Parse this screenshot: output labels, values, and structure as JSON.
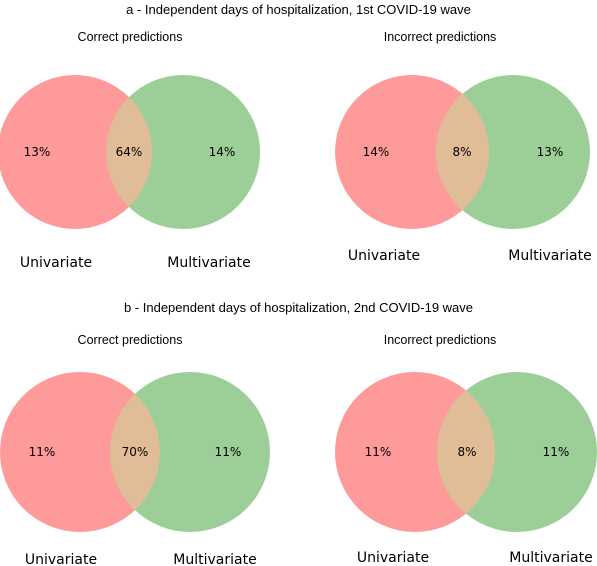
{
  "sections": [
    {
      "title": "a - Independent days of hospitalization, 1st COVID-19 wave",
      "panels": [
        {
          "title": "Correct predictions",
          "left_only": "13%",
          "overlap": "64%",
          "right_only": "14%",
          "left_label": "Univariate",
          "right_label": "Multivariate"
        },
        {
          "title": "Incorrect predictions",
          "left_only": "14%",
          "overlap": "8%",
          "right_only": "13%",
          "left_label": "Univariate",
          "right_label": "Multivariate"
        }
      ]
    },
    {
      "title": "b - Independent days of hospitalization, 2nd COVID-19 wave",
      "panels": [
        {
          "title": "Correct predictions",
          "left_only": "11%",
          "overlap": "70%",
          "right_only": "11%",
          "left_label": "Univariate",
          "right_label": "Multivariate"
        },
        {
          "title": "Incorrect predictions",
          "left_only": "11%",
          "overlap": "8%",
          "right_only": "11%",
          "left_label": "Univariate",
          "right_label": "Multivariate"
        }
      ]
    }
  ],
  "colors": {
    "left": "#ff9a9a",
    "right": "#9ccf97",
    "overlap": "#e0bd97"
  }
}
